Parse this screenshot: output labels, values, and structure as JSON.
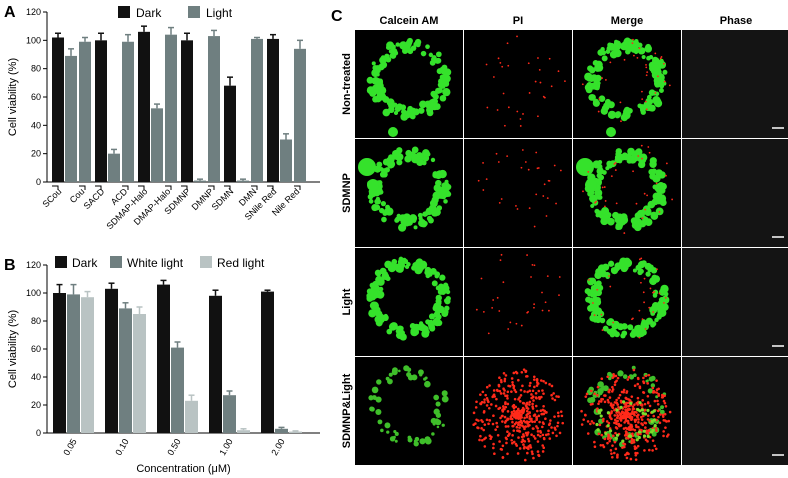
{
  "panels": {
    "a": "A",
    "b": "B",
    "c": "C"
  },
  "chart_data": [
    {
      "type": "bar",
      "ylabel": "Cell viability (%)",
      "ylim": [
        0,
        120
      ],
      "yticks": [
        0,
        20,
        40,
        60,
        80,
        100,
        120
      ],
      "groups": [
        {
          "labels": [
            "SCou",
            "Cou"
          ],
          "dark": 102,
          "light": 89,
          "dark_err": 3,
          "light_err": 5
        },
        {
          "labels": [
            "SACD",
            "ACD"
          ],
          "dark": 100,
          "light": 20,
          "dark_err": 5,
          "light_err": 3
        },
        {
          "labels": [
            "SDMAP-Halo",
            "DMAP-Halo"
          ],
          "dark": 106,
          "light": 52,
          "dark_err": 4,
          "light_err": 3
        },
        {
          "labels": [
            "SDMNP",
            "DMNP"
          ],
          "dark": 100,
          "light": 1,
          "dark_err": 5,
          "light_err": 1
        },
        {
          "labels": [
            "SDMN",
            "DMN"
          ],
          "dark": 68,
          "light": 1,
          "dark_err": 6,
          "light_err": 1
        },
        {
          "labels": [
            "SNile Red",
            "Nile Red"
          ],
          "dark": 101,
          "light": 30,
          "dark_err": 3,
          "light_err": 4
        }
      ],
      "cou_bar_2": 99,
      "bar_values_right": [
        99,
        99,
        104,
        103,
        101,
        94
      ],
      "bar_errs_right": [
        3,
        5,
        5,
        4,
        1,
        6
      ],
      "legend": [
        "Dark",
        "Light"
      ],
      "colors": {
        "dark": "#111111",
        "light": "#6f7f80"
      }
    },
    {
      "type": "bar",
      "ylabel": "Cell viability (%)",
      "xlabel": "Concentration (μM)",
      "ylim": [
        0,
        120
      ],
      "yticks": [
        0,
        20,
        40,
        60,
        80,
        100,
        120
      ],
      "categories": [
        "0.05",
        "0.10",
        "0.50",
        "1.00",
        "2.00"
      ],
      "series": [
        {
          "name": "Dark",
          "values": [
            100,
            103,
            106,
            98,
            101
          ],
          "errors": [
            6,
            4,
            3,
            4,
            1
          ],
          "color": "#111111"
        },
        {
          "name": "White light",
          "values": [
            99,
            89,
            61,
            27,
            3
          ],
          "errors": [
            7,
            4,
            4,
            3,
            1
          ],
          "color": "#6f7f80"
        },
        {
          "name": "Red light",
          "values": [
            97,
            85,
            23,
            2,
            1
          ],
          "errors": [
            4,
            5,
            4,
            1,
            0.5
          ],
          "color": "#b9c3c3"
        }
      ]
    }
  ],
  "microscopy": {
    "columns": [
      "Calcein AM",
      "PI",
      "Merge",
      "Phase"
    ],
    "rows": [
      "Non-treated",
      "SDMNP",
      "Light",
      "SDMNP&Light"
    ]
  }
}
